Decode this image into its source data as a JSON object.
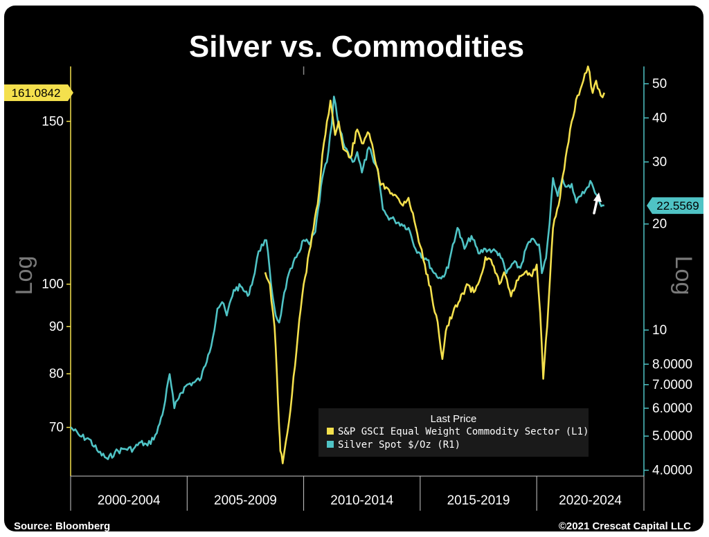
{
  "chart_data": {
    "type": "line",
    "title": "Silver vs. Commodities",
    "scale": "log",
    "axis_left": {
      "label": "Log",
      "ylim": [
        62,
        172
      ],
      "ticks": [
        {
          "value": 70,
          "label": "70"
        },
        {
          "value": 80,
          "label": "80"
        },
        {
          "value": 90,
          "label": "90"
        },
        {
          "value": 100,
          "label": "100"
        },
        {
          "value": 150,
          "label": "150"
        }
      ],
      "last_value_label": "161.0842",
      "last_value": 161.0842
    },
    "axis_right": {
      "label": "Log",
      "ylim": [
        3.85,
        56
      ],
      "ticks": [
        {
          "value": 4,
          "label": "4.0000"
        },
        {
          "value": 5,
          "label": "5.0000"
        },
        {
          "value": 6,
          "label": "6.0000"
        },
        {
          "value": 7,
          "label": "7.0000"
        },
        {
          "value": 8,
          "label": "8.0000"
        },
        {
          "value": 10,
          "label": "10"
        },
        {
          "value": 20,
          "label": "20"
        },
        {
          "value": 30,
          "label": "30"
        },
        {
          "value": 40,
          "label": "40"
        },
        {
          "value": 50,
          "label": "50"
        }
      ],
      "last_value_label": "22.5569",
      "last_value": 22.5569
    },
    "x_range": [
      2000,
      2024.6
    ],
    "x_bands": [
      {
        "start": 2000,
        "end": 2005,
        "label": "2000-2004"
      },
      {
        "start": 2005,
        "end": 2010,
        "label": "2005-2009"
      },
      {
        "start": 2010,
        "end": 2015,
        "label": "2010-2014"
      },
      {
        "start": 2015,
        "end": 2020,
        "label": "2015-2019"
      },
      {
        "start": 2020,
        "end": 2024.6,
        "label": "2020-2024"
      }
    ],
    "legend": {
      "title": "Last Price",
      "position": "bottom-right",
      "entries": [
        {
          "label": "S&P GSCI Equal Weight Commodity Sector  (L1)",
          "color": "#f4e04d"
        },
        {
          "label": "Silver Spot  $/Oz  (R1)",
          "color": "#4fc3c5"
        }
      ]
    },
    "series": [
      {
        "name": "S&P GSCI Equal Weight Commodity Sector",
        "axis": "left",
        "color": "#f4e04d",
        "x": [
          2008.35,
          2008.55,
          2008.75,
          2008.85,
          2008.95,
          2009.0,
          2009.1,
          2009.3,
          2009.5,
          2009.75,
          2010.0,
          2010.3,
          2010.6,
          2010.8,
          2011.0,
          2011.15,
          2011.35,
          2011.5,
          2011.7,
          2012.0,
          2012.3,
          2012.5,
          2012.75,
          2013.0,
          2013.3,
          2013.6,
          2013.9,
          2014.2,
          2014.5,
          2014.75,
          2015.0,
          2015.2,
          2015.5,
          2015.75,
          2015.95,
          2016.1,
          2016.4,
          2016.7,
          2017.0,
          2017.3,
          2017.6,
          2017.8,
          2018.1,
          2018.4,
          2018.6,
          2018.9,
          2019.2,
          2019.5,
          2019.8,
          2020.0,
          2020.15,
          2020.28,
          2020.45,
          2020.7,
          2021.0,
          2021.3,
          2021.5,
          2021.75,
          2022.0,
          2022.2,
          2022.4,
          2022.55,
          2022.75,
          2022.9
        ],
        "y": [
          103,
          100,
          90,
          80,
          70,
          66,
          64,
          69,
          76,
          88,
          100,
          110,
          122,
          138,
          150,
          158,
          145,
          150,
          140,
          137,
          147,
          142,
          146,
          139,
          128,
          127,
          125,
          122,
          124,
          117,
          110,
          105,
          97,
          91,
          83,
          89,
          93,
          96,
          100,
          98,
          102,
          107,
          105,
          100,
          103,
          97,
          101,
          103,
          102,
          105,
          93,
          79,
          90,
          115,
          124,
          140,
          150,
          160,
          166,
          172,
          161,
          166,
          160,
          161.0842
        ]
      },
      {
        "name": "Silver Spot $/Oz",
        "axis": "right",
        "color": "#4fc3c5",
        "x": [
          2000.0,
          2000.4,
          2000.8,
          2001.2,
          2001.6,
          2001.9,
          2002.3,
          2002.7,
          2003.0,
          2003.3,
          2003.7,
          2004.0,
          2004.25,
          2004.45,
          2004.7,
          2005.0,
          2005.3,
          2005.6,
          2005.9,
          2006.1,
          2006.3,
          2006.5,
          2006.7,
          2007.0,
          2007.3,
          2007.6,
          2007.9,
          2008.0,
          2008.2,
          2008.4,
          2008.6,
          2008.8,
          2008.95,
          2009.1,
          2009.3,
          2009.5,
          2009.75,
          2010.0,
          2010.25,
          2010.5,
          2010.8,
          2011.0,
          2011.2,
          2011.3,
          2011.5,
          2011.7,
          2011.9,
          2012.1,
          2012.3,
          2012.5,
          2012.8,
          2013.0,
          2013.2,
          2013.4,
          2013.6,
          2013.9,
          2014.2,
          2014.5,
          2014.8,
          2015.0,
          2015.3,
          2015.6,
          2015.9,
          2016.2,
          2016.4,
          2016.6,
          2016.9,
          2017.2,
          2017.5,
          2017.8,
          2018.1,
          2018.4,
          2018.7,
          2019.0,
          2019.3,
          2019.6,
          2019.9,
          2020.1,
          2020.22,
          2020.4,
          2020.55,
          2020.7,
          2020.9,
          2021.1,
          2021.3,
          2021.5,
          2021.7,
          2021.9,
          2022.1,
          2022.3,
          2022.5,
          2022.7,
          2022.9
        ],
        "y": [
          5.3,
          5.0,
          4.9,
          4.5,
          4.3,
          4.5,
          4.6,
          4.6,
          4.8,
          4.7,
          5.1,
          6.0,
          7.5,
          6.0,
          6.6,
          7.0,
          7.1,
          7.3,
          8.5,
          9.5,
          11.5,
          12.0,
          11.0,
          13.0,
          13.3,
          12.5,
          14.5,
          16.0,
          17.5,
          18.0,
          13.5,
          11.0,
          10.5,
          12.0,
          14.0,
          15.0,
          16.5,
          18.0,
          17.5,
          19.0,
          27.0,
          30.0,
          38.0,
          46.0,
          38.0,
          34.0,
          32.0,
          30.0,
          32.0,
          28.0,
          33.0,
          30.0,
          28.0,
          22.0,
          21.0,
          20.5,
          20.0,
          19.5,
          17.0,
          16.5,
          15.8,
          14.5,
          14.0,
          15.0,
          17.5,
          19.5,
          17.0,
          18.5,
          16.5,
          17.0,
          16.8,
          16.5,
          14.5,
          15.5,
          15.0,
          17.5,
          18.0,
          17.5,
          14.5,
          16.0,
          20.0,
          27.0,
          24.0,
          27.0,
          25.5,
          26.0,
          23.0,
          24.0,
          25.0,
          26.5,
          24.5,
          23.0,
          22.5569
        ]
      }
    ]
  },
  "footer": {
    "source": "Source: Bloomberg",
    "copyright": "©2021 Crescat Capital LLC"
  }
}
